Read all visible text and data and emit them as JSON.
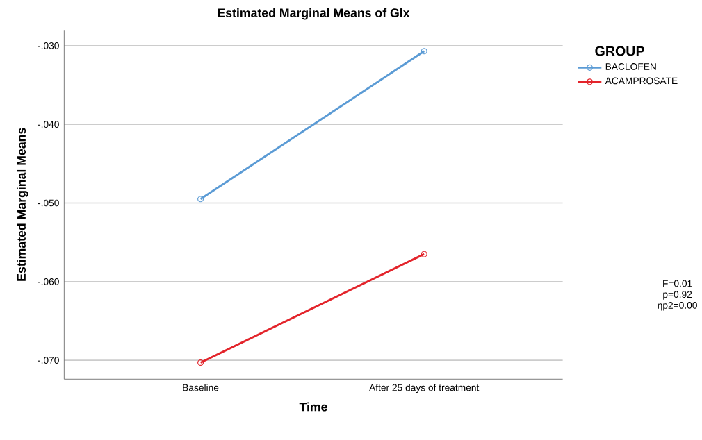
{
  "chart_data": {
    "type": "line",
    "title": "Estimated Marginal Means of Glx",
    "xlabel": "Time",
    "ylabel": "Estimated Marginal Means",
    "legend_title": "GROUP",
    "categories": [
      "Baseline",
      "After 25 days of treatment"
    ],
    "series": [
      {
        "name": "BACLOFEN",
        "color": "#5b9bd5",
        "values": [
          -0.0495,
          -0.0307
        ]
      },
      {
        "name": "ACAMPROSATE",
        "color": "#e3242b",
        "values": [
          -0.0703,
          -0.0565
        ]
      }
    ],
    "ylim": [
      -0.0724,
      -0.028
    ],
    "yticks": [
      {
        "value": -0.07,
        "label": "-.070"
      },
      {
        "value": -0.06,
        "label": "-.060"
      },
      {
        "value": -0.05,
        "label": "-.050"
      },
      {
        "value": -0.04,
        "label": "-.040"
      },
      {
        "value": -0.03,
        "label": "-.030"
      }
    ],
    "grid": "y",
    "legend": "top right",
    "marker": "circle",
    "line_style": "solid",
    "annotations": [
      "F=0.01",
      "p=0.92",
      "ηp2=0.00"
    ]
  }
}
